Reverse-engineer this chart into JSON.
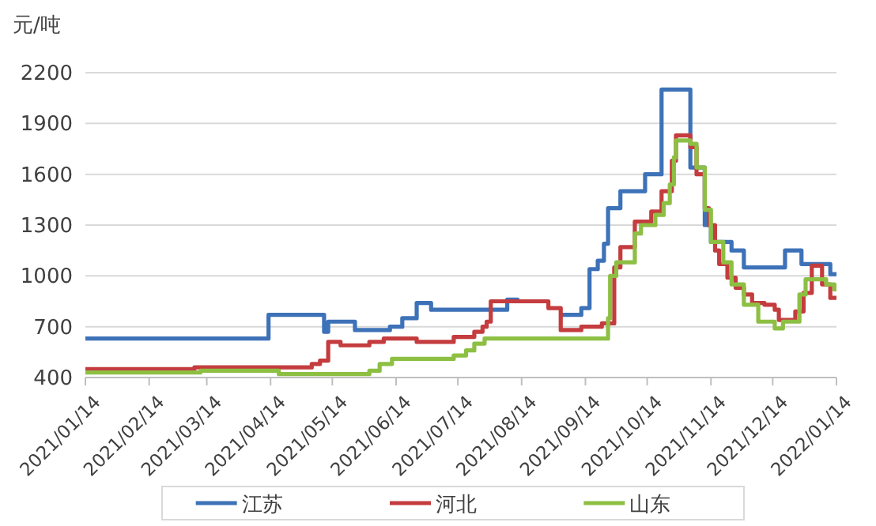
{
  "chart_data": {
    "type": "step",
    "ylabel": "元/吨",
    "xlim": [
      "2021-01-14",
      "2022-01-14"
    ],
    "xticks": [
      {
        "value": "2021-01-14",
        "label": "2021/01/14"
      },
      {
        "value": "2021-02-14",
        "label": "2021/02/14"
      },
      {
        "value": "2021-03-14",
        "label": "2021/03/14"
      },
      {
        "value": "2021-04-14",
        "label": "2021/04/14"
      },
      {
        "value": "2021-05-14",
        "label": "2021/05/14"
      },
      {
        "value": "2021-06-14",
        "label": "2021/06/14"
      },
      {
        "value": "2021-07-14",
        "label": "2021/07/14"
      },
      {
        "value": "2021-08-14",
        "label": "2021/08/14"
      },
      {
        "value": "2021-09-14",
        "label": "2021/09/14"
      },
      {
        "value": "2021-10-14",
        "label": "2021/10/14"
      },
      {
        "value": "2021-11-14",
        "label": "2021/11/14"
      },
      {
        "value": "2021-12-14",
        "label": "2021/12/14"
      },
      {
        "value": "2022-01-14",
        "label": "2022/01/14"
      }
    ],
    "ylim": [
      400,
      2200
    ],
    "yticks": [
      400,
      700,
      1000,
      1300,
      1600,
      1900,
      2200
    ],
    "grid": "y",
    "legend": "bottom",
    "series": [
      {
        "name": "江苏",
        "color": "#3d72b8",
        "x": [
          "2021-01-14",
          "2021-04-13",
          "2021-05-10",
          "2021-05-12",
          "2021-05-25",
          "2021-06-11",
          "2021-06-17",
          "2021-06-24",
          "2021-07-01",
          "2021-08-07",
          "2021-08-12",
          "2021-08-27",
          "2021-09-02",
          "2021-09-12",
          "2021-09-16",
          "2021-09-20",
          "2021-09-23",
          "2021-09-25",
          "2021-10-01",
          "2021-10-13",
          "2021-10-21",
          "2021-11-04",
          "2021-11-11",
          "2021-11-14",
          "2021-11-24",
          "2021-11-30",
          "2021-12-20",
          "2021-12-28",
          "2022-01-11",
          "2022-01-14"
        ],
        "values": [
          630,
          770,
          670,
          730,
          680,
          700,
          750,
          840,
          800,
          860,
          850,
          null,
          770,
          810,
          1040,
          1090,
          1190,
          1400,
          1500,
          1600,
          2100,
          1640,
          1300,
          1200,
          1150,
          1050,
          1150,
          1070,
          1010,
          1010
        ]
      },
      {
        "name": "河北",
        "color": "#c43c3e",
        "x": [
          "2021-01-14",
          "2021-03-08",
          "2021-05-04",
          "2021-05-08",
          "2021-05-12",
          "2021-05-18",
          "2021-06-01",
          "2021-06-08",
          "2021-06-24",
          "2021-07-12",
          "2021-07-22",
          "2021-07-26",
          "2021-07-28",
          "2021-07-30",
          "2021-08-27",
          "2021-09-02",
          "2021-09-12",
          "2021-09-22",
          "2021-09-28",
          "2021-10-01",
          "2021-10-08",
          "2021-10-16",
          "2021-10-21",
          "2021-10-26",
          "2021-10-28",
          "2021-11-04",
          "2021-11-07",
          "2021-11-11",
          "2021-11-13",
          "2021-11-16",
          "2021-11-18",
          "2021-11-22",
          "2021-11-26",
          "2021-11-30",
          "2021-12-04",
          "2021-12-10",
          "2021-12-15",
          "2021-12-17",
          "2021-12-25",
          "2021-12-29",
          "2022-01-02",
          "2022-01-07",
          "2022-01-11",
          "2022-01-14"
        ],
        "values": [
          450,
          460,
          480,
          500,
          610,
          590,
          610,
          630,
          610,
          640,
          670,
          700,
          730,
          850,
          810,
          680,
          700,
          720,
          1050,
          1170,
          1320,
          1380,
          1500,
          1680,
          1830,
          1760,
          1600,
          1400,
          1300,
          1150,
          1070,
          990,
          930,
          890,
          840,
          830,
          800,
          740,
          790,
          900,
          1060,
          950,
          870,
          870
        ]
      },
      {
        "name": "山东",
        "color": "#8dbf43",
        "x": [
          "2021-01-14",
          "2021-03-11",
          "2021-04-18",
          "2021-06-01",
          "2021-06-06",
          "2021-06-12",
          "2021-07-12",
          "2021-07-18",
          "2021-07-22",
          "2021-07-27",
          "2021-09-25",
          "2021-09-26",
          "2021-09-29",
          "2021-10-08",
          "2021-10-11",
          "2021-10-18",
          "2021-10-22",
          "2021-10-25",
          "2021-10-27",
          "2021-10-28",
          "2021-11-04",
          "2021-11-07",
          "2021-11-11",
          "2021-11-14",
          "2021-11-20",
          "2021-11-24",
          "2021-11-30",
          "2021-12-07",
          "2021-12-15",
          "2021-12-19",
          "2021-12-27",
          "2021-12-30",
          "2022-01-09",
          "2022-01-13",
          "2022-01-14"
        ],
        "values": [
          430,
          440,
          420,
          440,
          480,
          510,
          530,
          560,
          600,
          630,
          750,
          1000,
          1080,
          1250,
          1300,
          1360,
          1430,
          1540,
          1700,
          1800,
          1780,
          1640,
          1390,
          1200,
          1080,
          950,
          830,
          730,
          690,
          730,
          890,
          980,
          950,
          920,
          920
        ]
      }
    ]
  }
}
